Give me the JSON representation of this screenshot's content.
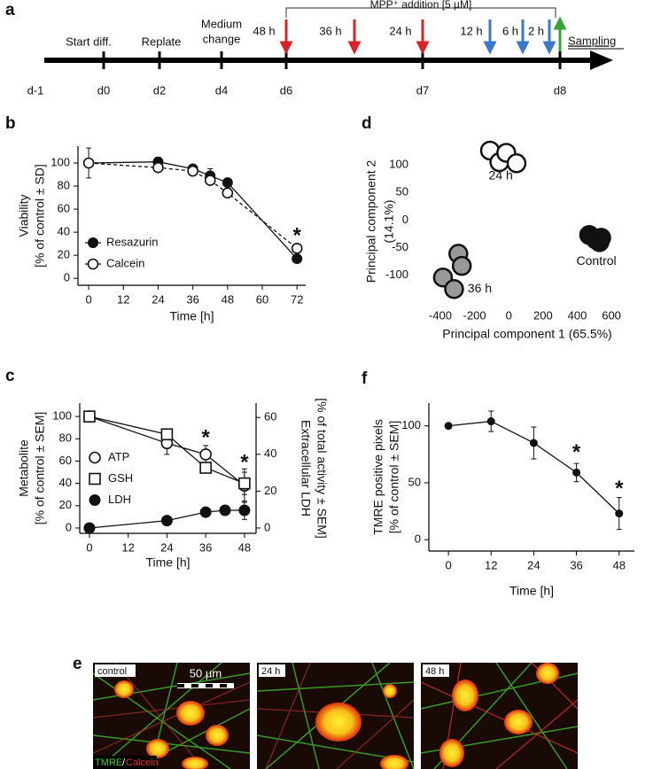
{
  "timeline": {
    "panel": "a",
    "days": [
      "d-1",
      "d0",
      "d2",
      "d4",
      "d6",
      "d7",
      "d8"
    ],
    "events": [
      "Start diff.",
      "Replate",
      "Medium",
      "change"
    ],
    "treatment": "MPP⁺ addition [5 µM]",
    "hours": [
      "48 h",
      "36 h",
      "24 h",
      "12 h",
      "6 h",
      "2 h"
    ],
    "sampling": "Sampling"
  },
  "chart_data": [
    {
      "type": "line",
      "panel": "b",
      "ylabel": [
        "Viability",
        "[% of control ± SD]"
      ],
      "xlabel": "Time [h]",
      "x": [
        0,
        24,
        36,
        42,
        48,
        72
      ],
      "series": [
        {
          "name": "Resazurin",
          "color": "#111111",
          "marker": "circle",
          "dash": false,
          "values": [
            100,
            101,
            95,
            89,
            83,
            17
          ],
          "errors": [
            13,
            4,
            2,
            6,
            3,
            3
          ]
        },
        {
          "name": "Calcein",
          "color": "#111111",
          "marker": "circle-open",
          "dash": true,
          "values": [
            100,
            96,
            93,
            85,
            74,
            26
          ],
          "errors": [
            3,
            3,
            3,
            3,
            2,
            3
          ]
        }
      ],
      "annotations": [
        {
          "text": "*",
          "x": 72,
          "y": 36
        }
      ],
      "legend": "lower left",
      "xlim": [
        -3.7,
        75
      ],
      "ylim": [
        -6,
        114.6
      ],
      "xticks": [
        0,
        12,
        24,
        36,
        48,
        60,
        72
      ],
      "yticks": [
        0,
        20,
        40,
        60,
        80,
        100
      ]
    },
    {
      "type": "line",
      "panel": "c",
      "ylabel": [
        "Metabolite",
        "[% of control ± SEM]"
      ],
      "xlabel": "Time [h]",
      "y2label": [
        "Extracellular LDH",
        "[% of total activity ± SEM]"
      ],
      "series": [
        {
          "name": "ATP",
          "color": "#111111",
          "marker": "circle-open",
          "dash": false,
          "x": [
            0,
            24,
            36,
            48
          ],
          "values": [
            100,
            76,
            66,
            38
          ],
          "errors": [
            3,
            10,
            8,
            15
          ]
        },
        {
          "name": "GSH",
          "color": "#111111",
          "marker": "square-open",
          "dash": false,
          "x": [
            0,
            24,
            36,
            48
          ],
          "values": [
            100,
            84,
            54,
            40
          ],
          "errors": [
            4,
            3,
            4,
            10
          ]
        },
        {
          "name": "LDH",
          "color": "#111111",
          "marker": "circle",
          "dash": false,
          "axis": "y2",
          "x": [
            0,
            24,
            36,
            42,
            48
          ],
          "values": [
            0,
            4,
            8.6,
            9.6,
            9.6
          ],
          "errors": [
            0,
            1,
            2,
            1,
            5
          ]
        }
      ],
      "annotations": [
        {
          "text": "*",
          "x": 36,
          "y": 80
        },
        {
          "text": "*",
          "x": 48,
          "y": 58
        }
      ],
      "legend": "center left",
      "xlim": [
        -3,
        51.6
      ],
      "ylim": [
        -4.8,
        112
      ],
      "y2lim": [
        -2.9,
        67.8
      ],
      "xticks": [
        0,
        12,
        24,
        36,
        48
      ],
      "yticks": [
        0,
        20,
        40,
        60,
        80,
        100
      ],
      "y2ticks": [
        0,
        20,
        40,
        60
      ]
    },
    {
      "type": "scatter",
      "panel": "d",
      "ylabel": [
        "Principal component 2",
        "(14.1%)"
      ],
      "xlabel": "Principal component 1 (65.5%)",
      "axis_lines": false,
      "series": [
        {
          "color": "#ffffff",
          "x": [
            -110,
            -55,
            -15,
            45
          ],
          "values": [
            126,
            105,
            122,
            103
          ]
        },
        {
          "color": "#999999",
          "x": [
            -385,
            -295,
            -275,
            -320
          ],
          "values": [
            -104,
            -61,
            -83,
            -125
          ]
        },
        {
          "color": "#111111",
          "x": [
            470,
            508,
            540,
            530
          ],
          "values": [
            -27,
            -35,
            -32,
            -40
          ]
        }
      ],
      "annotations": [
        {
          "text": "24 h",
          "x": -47,
          "y": 80
        },
        {
          "text": "36 h",
          "x": -170,
          "y": -125
        },
        {
          "text": "Control",
          "x": 512,
          "y": -75
        }
      ],
      "xlim": [
        -540,
        755
      ],
      "ylim": [
        -147,
        142
      ],
      "xticks": [
        -400,
        -200,
        0,
        200,
        400,
        600
      ],
      "yticks": [
        -100,
        -50,
        0,
        50,
        100
      ]
    },
    {
      "type": "line",
      "panel": "f",
      "ylabel": [
        "TMRE positive pixels",
        "[% of control ± SEM]"
      ],
      "xlabel": "Time [h]",
      "x": [
        0,
        12,
        24,
        36,
        48
      ],
      "series": [
        {
          "color": "#111111",
          "marker": "circle",
          "dash": false,
          "values": [
            100,
            104,
            85,
            59,
            23
          ],
          "errors": [
            0,
            9,
            14,
            8,
            14
          ]
        }
      ],
      "annotations": [
        {
          "text": "*",
          "x": 36,
          "y": 76
        },
        {
          "text": "*",
          "x": 48,
          "y": 44
        }
      ],
      "xlim": [
        -5.5,
        52.3
      ],
      "ylim": [
        -10,
        120
      ],
      "xticks": [
        0,
        12,
        24,
        36,
        48
      ],
      "yticks": [
        0,
        50,
        100
      ]
    }
  ],
  "micrographs": {
    "panel": "e",
    "labels": [
      "control",
      "24 h",
      "48 h"
    ],
    "scale_bar": "50 µm",
    "stain": [
      "TMRE",
      "/",
      "Calcein"
    ]
  }
}
